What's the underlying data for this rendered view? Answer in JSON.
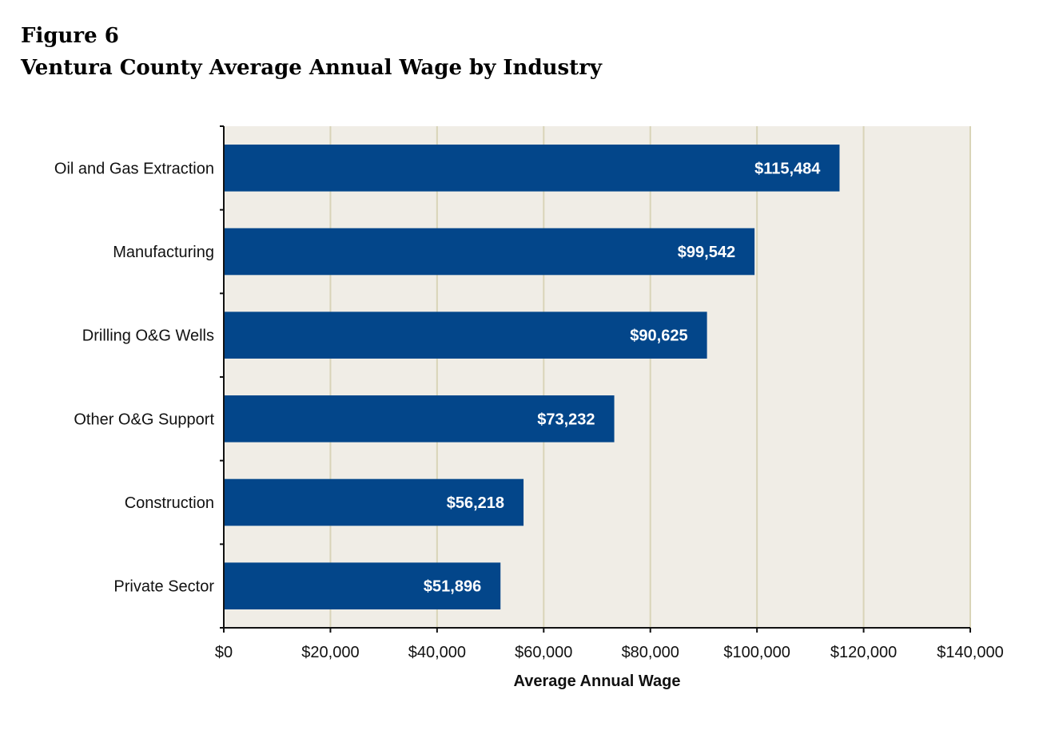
{
  "figure_label": "Figure 6",
  "figure_title": "Ventura County Average Annual Wage by Industry",
  "colors": {
    "bar": "#03468a",
    "plot_background": "#f0ede6",
    "gridline": "#d9d4b8",
    "axis": "#111111",
    "value_label": "#ffffff"
  },
  "chart_data": {
    "type": "bar",
    "orientation": "horizontal",
    "title": "Ventura County Average Annual Wage by Industry",
    "xlabel": "Average Annual Wage",
    "ylabel": "",
    "xlim": [
      0,
      140000
    ],
    "grid": true,
    "legend": "none",
    "categories": [
      "Oil and Gas Extraction",
      "Manufacturing",
      "Drilling O&G Wells",
      "Other O&G Support",
      "Construction",
      "Private Sector"
    ],
    "values": [
      115484,
      99542,
      90625,
      73232,
      56218,
      51896
    ],
    "value_labels": [
      "$115,484",
      "$99,542",
      "$90,625",
      "$73,232",
      "$56,218",
      "$51,896"
    ],
    "x_ticks": [
      0,
      20000,
      40000,
      60000,
      80000,
      100000,
      120000,
      140000
    ],
    "x_tick_labels": [
      "$0",
      "$20,000",
      "$40,000",
      "$60,000",
      "$80,000",
      "$100,000",
      "$120,000",
      "$140,000"
    ]
  }
}
